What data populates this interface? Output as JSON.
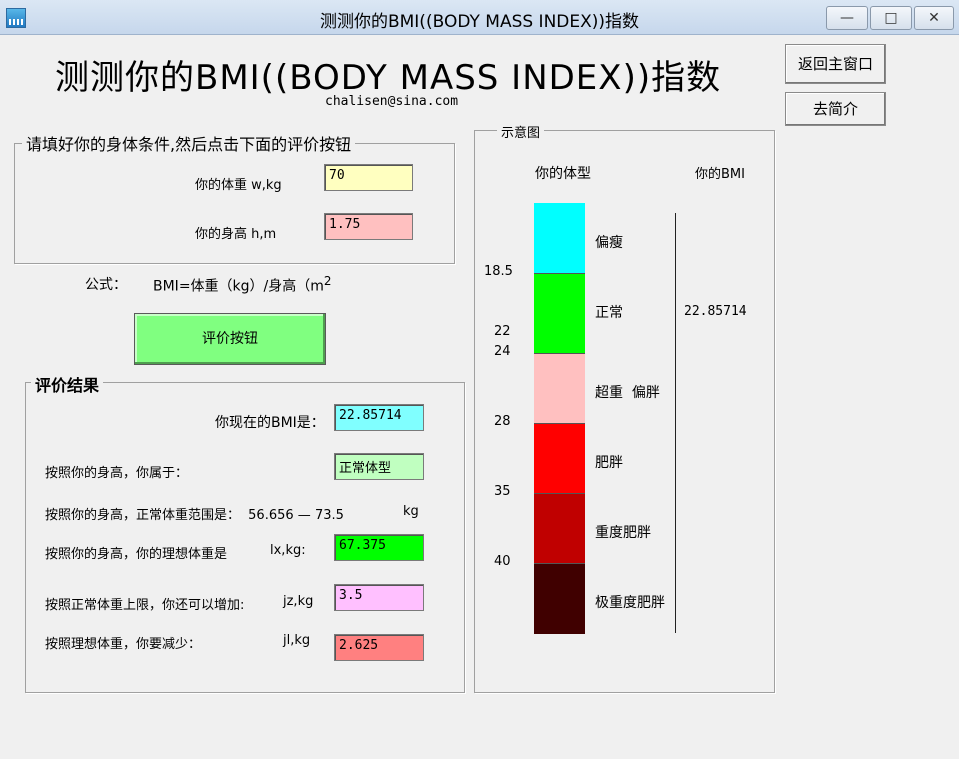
{
  "window": {
    "title": "测测你的BMI((BODY MASS INDEX))指数",
    "minimize_icon": "minimize-icon",
    "maximize_icon": "maximize-icon",
    "close_icon": "close-icon"
  },
  "header": {
    "title": "测测你的BMI((BODY MASS INDEX))指数",
    "email": "chalisen@sina.com"
  },
  "nav": {
    "back_label": "返回主窗口",
    "intro_label": "去简介"
  },
  "input_group": {
    "legend": "请填好你的身体条件,然后点击下面的评价按钮",
    "weight_label": "你的体重 w,kg",
    "weight_value": "70",
    "height_label": "你的身高 h,m",
    "height_value": "1.75"
  },
  "formula": {
    "label": "公式：",
    "text": "BMI=体重（kg）/身高（m",
    "sup": "2"
  },
  "eval_button": {
    "label": "评价按钮"
  },
  "result_group": {
    "legend": "评价结果",
    "bmi_label": "你现在的BMI是：",
    "bmi_value": "22.85714",
    "category_label": "按照你的身高，你属于：",
    "category_value": "正常体型",
    "range_label": "按照你的身高，正常体重范围是：",
    "range_low": "56.656",
    "range_dash": "—",
    "range_high": "73.5",
    "range_unit": "kg",
    "ideal_label": "按照你的身高，你的理想体重是",
    "ideal_unit": "lx,kg:",
    "ideal_value": "67.375",
    "add_label": "按照正常体重上限，你还可以增加:",
    "add_unit": "jz,kg",
    "add_value": "3.5",
    "reduce_label": "按照理想体重，你要减少：",
    "reduce_unit": "jl,kg",
    "reduce_value": "2.625"
  },
  "diagram": {
    "legend": "示意图",
    "col_type": "你的体型",
    "col_bmi": "你的BMI",
    "bmi_value": "22.85714",
    "thresholds": [
      "18.5",
      "22",
      "24",
      "28",
      "35",
      "40"
    ],
    "bands": [
      {
        "label": "偏瘦",
        "color": "#00ffff"
      },
      {
        "label": "正常",
        "color": "#00ff00"
      },
      {
        "label": "超重  偏胖",
        "color": "#ffc0c0"
      },
      {
        "label": "肥胖",
        "color": "#ff0000"
      },
      {
        "label": "重度肥胖",
        "color": "#c00000"
      },
      {
        "label": "极重度肥胖",
        "color": "#400000"
      }
    ]
  },
  "colors": {
    "weight_field": "#ffffc0",
    "height_field": "#ffc0c0",
    "bmi_field": "#80ffff",
    "category_field": "#c0ffc0",
    "ideal_field": "#00ff00",
    "add_field": "#ffc0ff",
    "reduce_field": "#ff8080",
    "eval_button": "#80ff80"
  }
}
